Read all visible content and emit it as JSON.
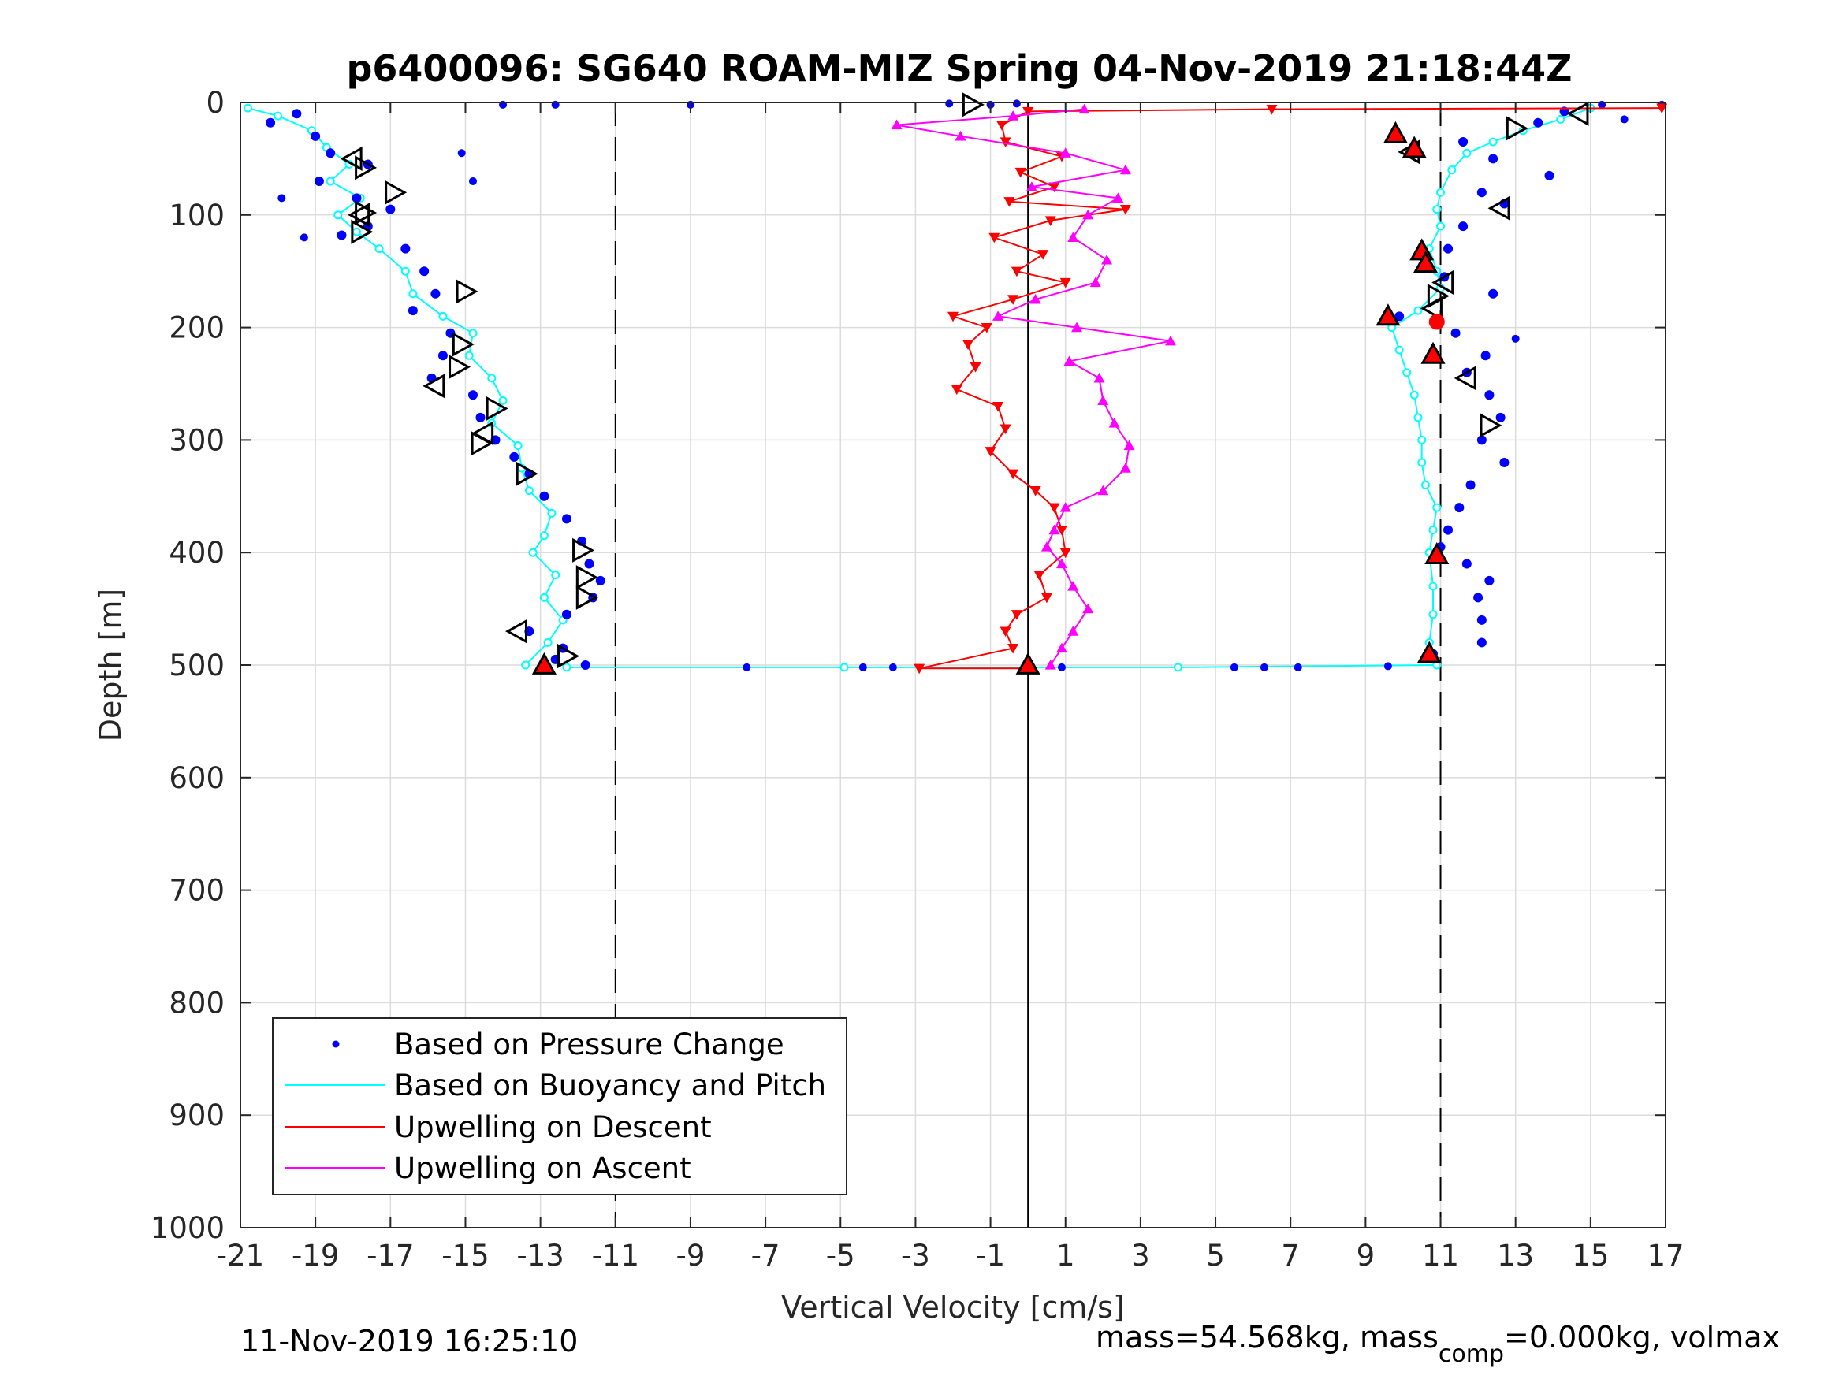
{
  "chart_data": {
    "type": "scatter",
    "title": "p6400096: SG640 ROAM-MIZ Spring 04-Nov-2019 21:18:44Z",
    "xlabel": "Vertical Velocity [cm/s]",
    "ylabel": "Depth [m]",
    "xlim": [
      -21,
      17
    ],
    "ylim": [
      0,
      1000
    ],
    "y_reversed": true,
    "grid": true,
    "x_ticks": [
      "-21",
      "-19",
      "-17",
      "-15",
      "-13",
      "-11",
      "-9",
      "-7",
      "-5",
      "-3",
      "-1",
      "1",
      "3",
      "5",
      "7",
      "9",
      "11",
      "13",
      "15",
      "17"
    ],
    "y_ticks": [
      "0",
      "100",
      "200",
      "300",
      "400",
      "500",
      "600",
      "700",
      "800",
      "900",
      "1000"
    ],
    "reference_lines": [
      {
        "x": -11,
        "style": "dashed"
      },
      {
        "x": 0,
        "style": "solid"
      },
      {
        "x": 11,
        "style": "dashed"
      }
    ],
    "legend_position": "bottom-left",
    "series": [
      {
        "name": "Based on Pressure Change",
        "color": "#0000ff",
        "marker": "dot",
        "descent": [
          [
            -19.5,
            10
          ],
          [
            -20.2,
            18
          ],
          [
            -19.0,
            30
          ],
          [
            -18.6,
            45
          ],
          [
            -17.6,
            55
          ],
          [
            -18.9,
            70
          ],
          [
            -17.9,
            85
          ],
          [
            -17.0,
            95
          ],
          [
            -17.6,
            110
          ],
          [
            -18.3,
            118
          ],
          [
            -16.6,
            130
          ],
          [
            -16.1,
            150
          ],
          [
            -15.8,
            170
          ],
          [
            -16.4,
            185
          ],
          [
            -15.4,
            205
          ],
          [
            -15.6,
            225
          ],
          [
            -15.9,
            245
          ],
          [
            -14.8,
            260
          ],
          [
            -14.6,
            280
          ],
          [
            -14.2,
            300
          ],
          [
            -13.7,
            315
          ],
          [
            -13.3,
            330
          ],
          [
            -12.9,
            350
          ],
          [
            -12.3,
            370
          ],
          [
            -11.9,
            390
          ],
          [
            -11.7,
            410
          ],
          [
            -11.4,
            425
          ],
          [
            -11.6,
            440
          ],
          [
            -12.3,
            455
          ],
          [
            -13.3,
            470
          ],
          [
            -12.4,
            485
          ],
          [
            -12.6,
            495
          ],
          [
            -11.8,
            500
          ]
        ],
        "ascent": [
          [
            14.3,
            8
          ],
          [
            13.6,
            18
          ],
          [
            11.6,
            35
          ],
          [
            12.4,
            50
          ],
          [
            13.9,
            65
          ],
          [
            12.1,
            80
          ],
          [
            12.7,
            90
          ],
          [
            11.6,
            110
          ],
          [
            11.2,
            130
          ],
          [
            11.1,
            155
          ],
          [
            12.4,
            170
          ],
          [
            9.9,
            190
          ],
          [
            11.4,
            205
          ],
          [
            12.2,
            225
          ],
          [
            11.7,
            240
          ],
          [
            12.3,
            260
          ],
          [
            12.6,
            280
          ],
          [
            12.1,
            300
          ],
          [
            12.7,
            320
          ],
          [
            11.8,
            340
          ],
          [
            11.5,
            360
          ],
          [
            11.2,
            380
          ],
          [
            11.0,
            395
          ],
          [
            11.7,
            410
          ],
          [
            12.3,
            425
          ],
          [
            12.0,
            440
          ],
          [
            12.1,
            460
          ],
          [
            12.1,
            480
          ],
          [
            10.8,
            490
          ]
        ],
        "surface_points": [
          [
            -14.0,
            2
          ],
          [
            -12.6,
            2
          ],
          [
            -9.0,
            2
          ],
          [
            -2.1,
            1
          ],
          [
            -1.0,
            2
          ],
          [
            -0.3,
            1
          ],
          [
            15.3,
            2
          ],
          [
            16.9,
            2
          ],
          [
            15.9,
            15
          ],
          [
            -15.1,
            45
          ],
          [
            -14.8,
            70
          ],
          [
            -19.9,
            85
          ],
          [
            -19.3,
            120
          ],
          [
            -7.5,
            502
          ],
          [
            -4.4,
            502
          ],
          [
            -3.6,
            502
          ],
          [
            5.5,
            502
          ],
          [
            6.3,
            502
          ],
          [
            7.2,
            502
          ],
          [
            9.6,
            501
          ],
          [
            0.9,
            502
          ],
          [
            13.0,
            210
          ]
        ]
      },
      {
        "name": "Based on Buoyancy and Pitch",
        "color": "#00ffff",
        "marker": "line-circle",
        "descent": [
          [
            -20.8,
            5
          ],
          [
            -20.0,
            12
          ],
          [
            -19.1,
            25
          ],
          [
            -18.7,
            40
          ],
          [
            -18.1,
            55
          ],
          [
            -18.6,
            70
          ],
          [
            -17.8,
            85
          ],
          [
            -18.4,
            100
          ],
          [
            -17.9,
            115
          ],
          [
            -17.3,
            130
          ],
          [
            -16.6,
            150
          ],
          [
            -16.4,
            170
          ],
          [
            -15.6,
            190
          ],
          [
            -14.8,
            205
          ],
          [
            -14.9,
            225
          ],
          [
            -14.3,
            245
          ],
          [
            -14.0,
            265
          ],
          [
            -14.3,
            285
          ],
          [
            -13.6,
            305
          ],
          [
            -13.5,
            325
          ],
          [
            -13.3,
            345
          ],
          [
            -12.7,
            365
          ],
          [
            -12.9,
            385
          ],
          [
            -13.2,
            400
          ],
          [
            -12.6,
            420
          ],
          [
            -12.9,
            440
          ],
          [
            -12.4,
            460
          ],
          [
            -12.8,
            480
          ],
          [
            -13.4,
            500
          ]
        ],
        "ascent": [
          [
            10.9,
            500
          ],
          [
            10.7,
            480
          ],
          [
            10.8,
            455
          ],
          [
            10.8,
            430
          ],
          [
            10.7,
            400
          ],
          [
            10.8,
            380
          ],
          [
            10.9,
            360
          ],
          [
            10.6,
            340
          ],
          [
            10.5,
            320
          ],
          [
            10.5,
            300
          ],
          [
            10.4,
            280
          ],
          [
            10.3,
            260
          ],
          [
            10.1,
            240
          ],
          [
            9.9,
            220
          ],
          [
            9.7,
            200
          ],
          [
            10.4,
            185
          ],
          [
            11.0,
            165
          ],
          [
            10.9,
            150
          ],
          [
            10.7,
            130
          ],
          [
            11.0,
            110
          ],
          [
            10.9,
            95
          ],
          [
            11.0,
            80
          ],
          [
            11.3,
            60
          ],
          [
            11.7,
            45
          ],
          [
            12.4,
            35
          ],
          [
            13.2,
            25
          ],
          [
            14.2,
            15
          ],
          [
            15.0,
            5
          ]
        ],
        "bottom_transition": [
          [
            -12.3,
            502
          ],
          [
            -4.9,
            502
          ],
          [
            4.0,
            502
          ],
          [
            10.9,
            500
          ]
        ]
      },
      {
        "name": "Upwelling on Descent",
        "color": "#ff0000",
        "marker": "triangle-down",
        "points": [
          [
            16.9,
            5
          ],
          [
            6.5,
            6
          ],
          [
            0.0,
            8
          ],
          [
            -0.7,
            20
          ],
          [
            -0.6,
            35
          ],
          [
            0.9,
            48
          ],
          [
            -0.2,
            62
          ],
          [
            0.7,
            75
          ],
          [
            -0.5,
            88
          ],
          [
            2.6,
            95
          ],
          [
            0.6,
            105
          ],
          [
            -0.9,
            120
          ],
          [
            0.4,
            135
          ],
          [
            -0.3,
            150
          ],
          [
            1.0,
            160
          ],
          [
            -0.4,
            175
          ],
          [
            -2.0,
            190
          ],
          [
            -1.1,
            200
          ],
          [
            -1.6,
            215
          ],
          [
            -1.4,
            235
          ],
          [
            -1.9,
            255
          ],
          [
            -0.8,
            270
          ],
          [
            -0.6,
            290
          ],
          [
            -1.0,
            310
          ],
          [
            -0.4,
            330
          ],
          [
            0.2,
            345
          ],
          [
            0.7,
            360
          ],
          [
            0.9,
            380
          ],
          [
            1.0,
            400
          ],
          [
            0.3,
            420
          ],
          [
            0.5,
            440
          ],
          [
            -0.3,
            455
          ],
          [
            -0.6,
            470
          ],
          [
            -0.4,
            485
          ],
          [
            -2.9,
            503
          ],
          [
            0.0,
            503
          ]
        ]
      },
      {
        "name": "Upwelling on Ascent",
        "color": "#ff00ff",
        "marker": "triangle-up",
        "points": [
          [
            0.6,
            500
          ],
          [
            0.9,
            485
          ],
          [
            1.2,
            470
          ],
          [
            1.6,
            450
          ],
          [
            1.2,
            430
          ],
          [
            0.9,
            410
          ],
          [
            0.5,
            395
          ],
          [
            0.7,
            380
          ],
          [
            1.0,
            360
          ],
          [
            2.0,
            345
          ],
          [
            2.6,
            325
          ],
          [
            2.7,
            305
          ],
          [
            2.3,
            285
          ],
          [
            2.0,
            265
          ],
          [
            1.9,
            245
          ],
          [
            1.1,
            230
          ],
          [
            3.8,
            212
          ],
          [
            1.3,
            200
          ],
          [
            -0.8,
            190
          ],
          [
            0.2,
            175
          ],
          [
            1.8,
            160
          ],
          [
            2.1,
            140
          ],
          [
            1.2,
            120
          ],
          [
            1.6,
            100
          ],
          [
            2.4,
            85
          ],
          [
            0.1,
            75
          ],
          [
            2.6,
            60
          ],
          [
            1.0,
            45
          ],
          [
            -1.8,
            30
          ],
          [
            -3.5,
            20
          ],
          [
            -0.4,
            12
          ],
          [
            1.5,
            6
          ]
        ]
      }
    ],
    "annotations": {
      "open_triangles_right": [
        [
          -1.5,
          2
        ],
        [
          -17.7,
          58
        ],
        [
          -16.9,
          80
        ],
        [
          -17.7,
          98
        ],
        [
          -17.8,
          115
        ],
        [
          -15.0,
          168
        ],
        [
          -15.1,
          215
        ],
        [
          -15.2,
          235
        ],
        [
          -14.2,
          272
        ],
        [
          -14.6,
          303
        ],
        [
          -13.4,
          330
        ],
        [
          -11.9,
          398
        ],
        [
          -11.8,
          422
        ],
        [
          -11.8,
          440
        ],
        [
          -12.3,
          492
        ],
        [
          13.0,
          23
        ],
        [
          10.9,
          172
        ],
        [
          12.3,
          287
        ]
      ],
      "open_triangles_left": [
        [
          -18.0,
          50
        ],
        [
          -17.8,
          100
        ],
        [
          -14.5,
          294
        ],
        [
          -15.8,
          252
        ],
        [
          -13.6,
          470
        ],
        [
          14.7,
          10
        ],
        [
          10.2,
          44
        ],
        [
          12.6,
          94
        ],
        [
          11.1,
          160
        ],
        [
          10.8,
          183
        ],
        [
          11.7,
          245
        ]
      ],
      "red_triangles": [
        [
          9.8,
          28
        ],
        [
          10.3,
          41
        ],
        [
          10.5,
          132
        ],
        [
          10.6,
          143
        ],
        [
          9.6,
          190
        ],
        [
          10.8,
          224
        ],
        [
          10.9,
          402
        ],
        [
          10.7,
          490
        ],
        [
          -12.9,
          500
        ],
        [
          0.0,
          500
        ]
      ],
      "red_dots": [
        [
          10.9,
          195
        ]
      ]
    }
  },
  "footer": {
    "timestamp": "11-Nov-2019 16:25:10",
    "mass_label": "mass=54.568kg, mass",
    "mass_sub": "comp",
    "mass_rest": "=0.000kg, volmax"
  }
}
